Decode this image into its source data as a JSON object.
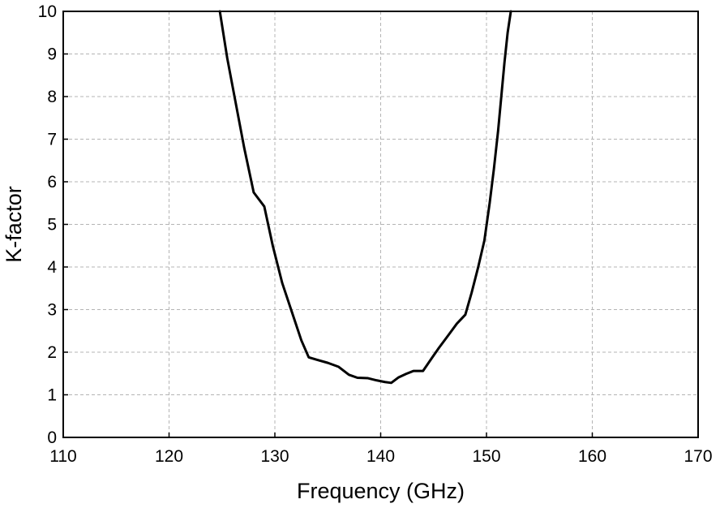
{
  "chart_data": {
    "type": "line",
    "title": "",
    "xlabel": "Frequency (GHz)",
    "ylabel": "K-factor",
    "xlim": [
      110,
      170
    ],
    "ylim": [
      0,
      10
    ],
    "xticks": [
      110,
      120,
      130,
      140,
      150,
      160,
      170
    ],
    "yticks": [
      0,
      1,
      2,
      3,
      4,
      5,
      6,
      7,
      8,
      9,
      10
    ],
    "grid": true,
    "line_color": "#000000",
    "grid_color": "#b4b4b4",
    "series": [
      {
        "x": [
          124.8,
          125.5,
          126.3,
          127.1,
          128.0,
          129.0,
          129.8,
          130.7,
          131.6,
          132.5,
          133.2,
          134.0,
          135.0,
          136.0,
          137.0,
          137.8,
          138.8,
          139.6,
          140.4,
          141.0,
          141.7,
          142.4,
          143.1,
          144.0,
          144.8,
          145.5,
          146.4,
          147.2,
          148.0,
          148.6,
          149.2,
          149.8,
          150.3,
          150.7,
          151.1,
          151.4,
          151.7,
          152.0,
          152.3
        ],
        "y": [
          10.0,
          8.9,
          7.85,
          6.8,
          5.75,
          5.42,
          4.5,
          3.62,
          2.95,
          2.28,
          1.88,
          1.82,
          1.75,
          1.66,
          1.47,
          1.4,
          1.39,
          1.34,
          1.3,
          1.28,
          1.41,
          1.49,
          1.56,
          1.56,
          1.85,
          2.1,
          2.4,
          2.67,
          2.88,
          3.4,
          3.98,
          4.62,
          5.5,
          6.3,
          7.2,
          8.0,
          8.8,
          9.5,
          10.0
        ]
      }
    ]
  }
}
